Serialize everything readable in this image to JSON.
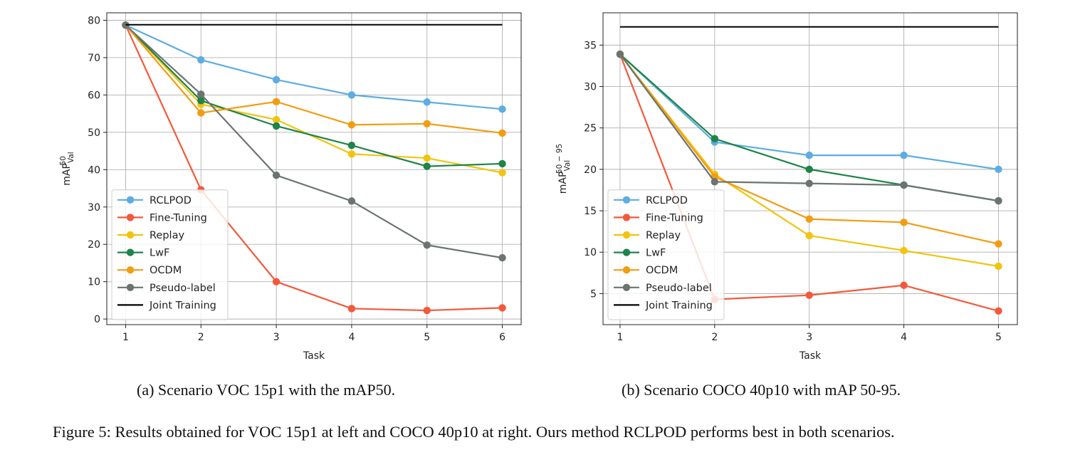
{
  "chart_data": [
    {
      "type": "line",
      "caption": "(a) Scenario VOC 15p1 with the mAP50.",
      "xlabel": "Task",
      "ylabel": "mAP",
      "ylabel_sup": "50",
      "ylabel_sub": "Val",
      "x": [
        1,
        2,
        3,
        4,
        5,
        6
      ],
      "xlim": [
        0.75,
        6.25
      ],
      "ylim": [
        -1.5,
        82
      ],
      "yticks": [
        0,
        10,
        20,
        30,
        40,
        50,
        60,
        70,
        80
      ],
      "grid": true,
      "legend_position": "lower-left",
      "series": [
        {
          "name": "RCLPOD",
          "color": "#5dade2",
          "values": [
            78.7,
            69.4,
            64.1,
            60.0,
            58.1,
            56.2
          ]
        },
        {
          "name": "Fine-Tuning",
          "color": "#f4583a",
          "values": [
            78.7,
            34.6,
            10.0,
            2.8,
            2.3,
            3.0
          ]
        },
        {
          "name": "Replay",
          "color": "#f1c40f",
          "values": [
            78.7,
            57.5,
            53.4,
            44.2,
            43.1,
            39.2
          ]
        },
        {
          "name": "LwF",
          "color": "#1e8449",
          "values": [
            78.7,
            58.5,
            51.7,
            46.5,
            40.9,
            41.6
          ]
        },
        {
          "name": "OCDM",
          "color": "#f39c12",
          "values": [
            78.7,
            55.2,
            58.2,
            52.0,
            52.3,
            49.8
          ]
        },
        {
          "name": "Pseudo-label",
          "color": "#6b7471",
          "values": [
            78.7,
            60.2,
            38.5,
            31.6,
            19.8,
            16.4
          ]
        },
        {
          "name": "Joint Training",
          "color": "#000000",
          "values": [
            78.8,
            78.8,
            78.8,
            78.8,
            78.8,
            78.8
          ],
          "no_markers": true
        }
      ]
    },
    {
      "type": "line",
      "caption": "(b) Scenario COCO 40p10 with mAP 50-95.",
      "xlabel": "Task",
      "ylabel": "mAP",
      "ylabel_sup": "50 − 95",
      "ylabel_sub": "Val",
      "x": [
        1,
        2,
        3,
        4,
        5
      ],
      "xlim": [
        0.82,
        5.2
      ],
      "ylim": [
        1.25,
        38.9
      ],
      "yticks": [
        5,
        10,
        15,
        20,
        25,
        30,
        35
      ],
      "grid": true,
      "legend_position": "lower-left",
      "series": [
        {
          "name": "RCLPOD",
          "color": "#5dade2",
          "values": [
            33.9,
            23.3,
            21.7,
            21.7,
            20.0
          ]
        },
        {
          "name": "Fine-Tuning",
          "color": "#f4583a",
          "values": [
            33.9,
            4.3,
            4.8,
            6.0,
            2.9
          ]
        },
        {
          "name": "Replay",
          "color": "#f1c40f",
          "values": [
            33.9,
            19.4,
            12.0,
            10.2,
            8.3
          ]
        },
        {
          "name": "LwF",
          "color": "#1e8449",
          "values": [
            33.9,
            23.7,
            20.0,
            18.1,
            16.2
          ]
        },
        {
          "name": "OCDM",
          "color": "#f39c12",
          "values": [
            33.9,
            19.1,
            14.0,
            13.6,
            11.0
          ]
        },
        {
          "name": "Pseudo-label",
          "color": "#6b7471",
          "values": [
            33.9,
            18.5,
            18.3,
            18.1,
            16.2
          ]
        },
        {
          "name": "Joint Training",
          "color": "#000000",
          "values": [
            37.2,
            37.2,
            37.2,
            37.2,
            37.2
          ],
          "no_markers": true
        }
      ]
    }
  ],
  "figure_caption": "Figure 5: Results obtained for VOC 15p1 at left and COCO 40p10 at right. Ours method RCLPOD performs best in both scenarios."
}
